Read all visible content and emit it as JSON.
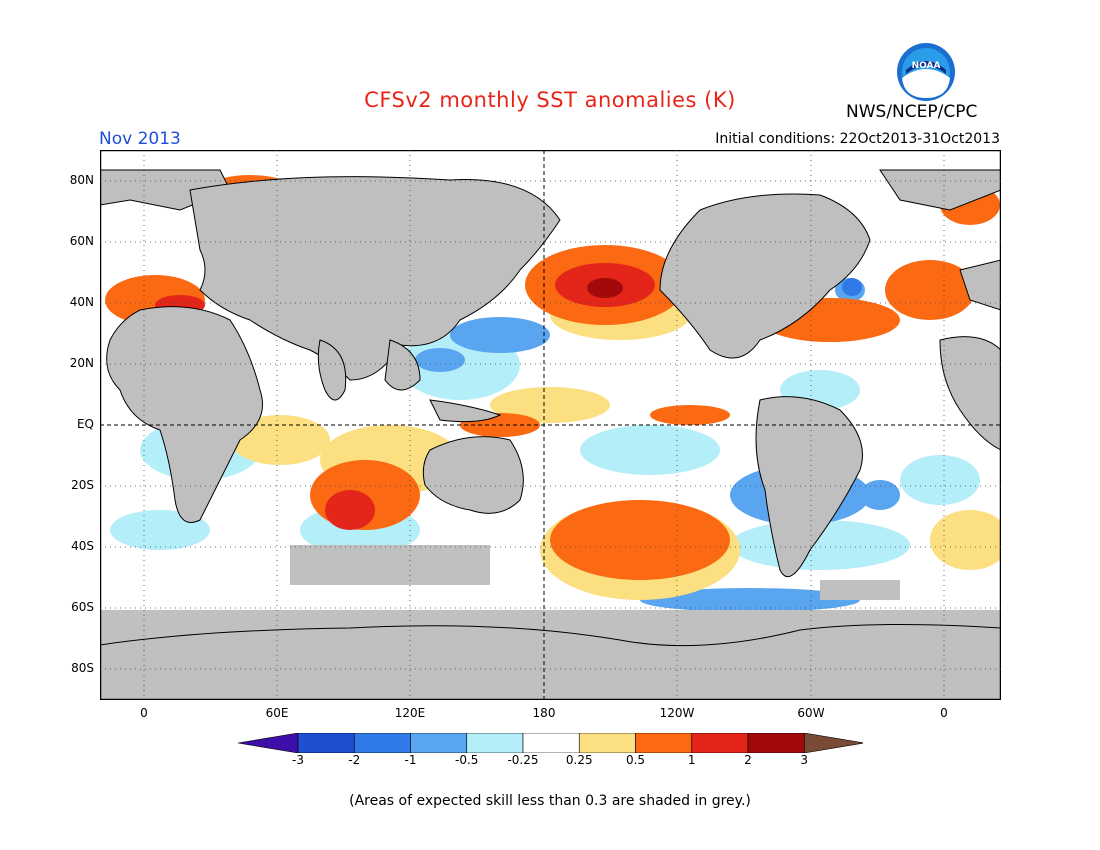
{
  "title": "CFSv2 monthly SST anomalies (K)",
  "agency": "NWS/NCEP/CPC",
  "month": "Nov 2013",
  "initial_conditions": "Initial conditions: 22Oct2013-31Oct2013",
  "note": "(Areas of expected skill less than 0.3 are shaded in grey.)",
  "logo_text": "NOAA",
  "lat_labels": [
    "80N",
    "60N",
    "40N",
    "20N",
    "EQ",
    "20S",
    "40S",
    "60S",
    "80S"
  ],
  "lon_labels": [
    "0",
    "60E",
    "120E",
    "180",
    "120W",
    "60W",
    "0"
  ],
  "colorbar": {
    "ticks": [
      "-3",
      "-2",
      "-1",
      "-0.5",
      "-0.25",
      "0.25",
      "0.5",
      "1",
      "2",
      "3"
    ],
    "colors": [
      "#3d0ea8",
      "#1d4fd0",
      "#2f7ae6",
      "#5aa5f0",
      "#b4eef8",
      "#ffffff",
      "#fbdf80",
      "#fb6a12",
      "#e4251a",
      "#a20a0a",
      "#7a4a35"
    ]
  },
  "colors": {
    "land": "#bfbfbf",
    "grey_skill": "#c0c0c0",
    "title": "#e8251a",
    "month": "#1f4fd8"
  }
}
